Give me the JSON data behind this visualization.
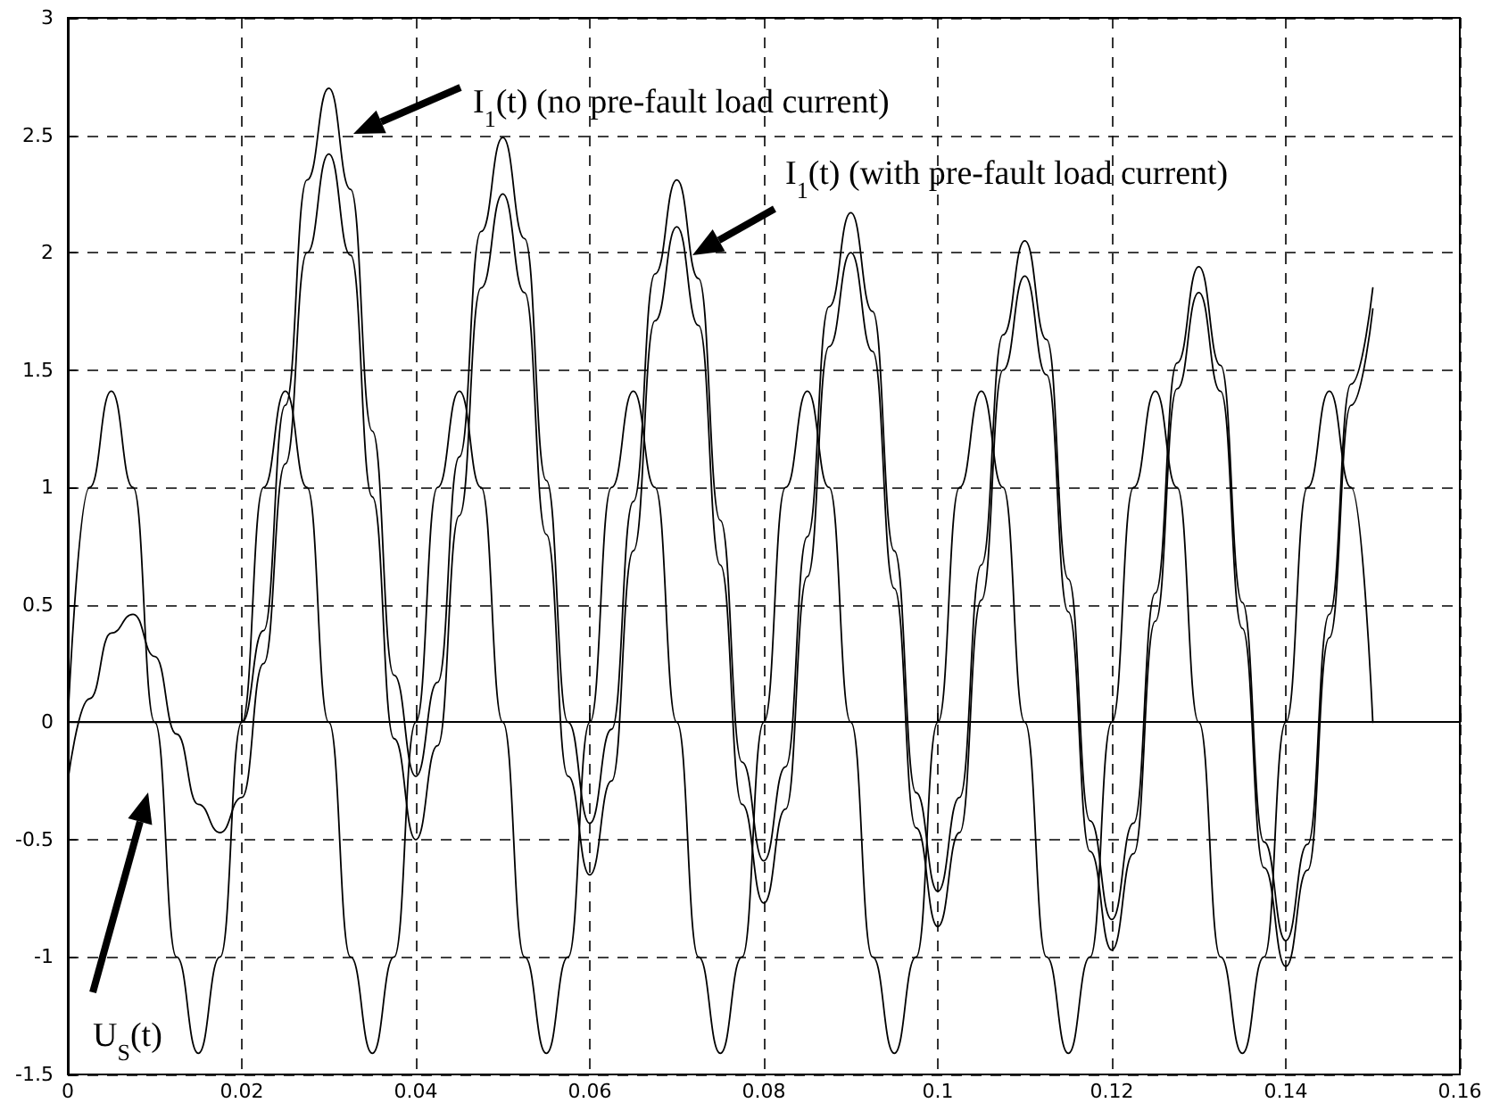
{
  "chart_data": {
    "type": "line",
    "x": [
      0,
      0.0025,
      0.005,
      0.0075,
      0.01,
      0.0125,
      0.015,
      0.0175,
      0.02,
      0.0225,
      0.025,
      0.0275,
      0.03,
      0.0325,
      0.035,
      0.0375,
      0.04,
      0.0425,
      0.045,
      0.0475,
      0.05,
      0.0525,
      0.055,
      0.0575,
      0.06,
      0.0625,
      0.065,
      0.0675,
      0.07,
      0.0725,
      0.075,
      0.0775,
      0.08,
      0.0825,
      0.085,
      0.0875,
      0.09,
      0.0925,
      0.095,
      0.0975,
      0.1,
      0.1025,
      0.105,
      0.1075,
      0.11,
      0.1125,
      0.115,
      0.1175,
      0.12,
      0.1225,
      0.125,
      0.1275,
      0.13,
      0.1325,
      0.135,
      0.1375,
      0.14,
      0.1425,
      0.145,
      0.1475,
      0.15
    ],
    "series": [
      {
        "color": "#000000",
        "values": [
          0,
          1.0,
          1.41,
          1.0,
          0,
          -1.0,
          -1.41,
          -1.0,
          0,
          1.0,
          1.41,
          1.0,
          0,
          -1.0,
          -1.41,
          -1.0,
          0,
          1.0,
          1.41,
          1.0,
          0,
          -1.0,
          -1.41,
          -1.0,
          0,
          1.0,
          1.41,
          1.0,
          0,
          -1.0,
          -1.41,
          -1.0,
          0,
          1.0,
          1.41,
          1.0,
          0,
          -1.0,
          -1.41,
          -1.0,
          0,
          1.0,
          1.41,
          1.0,
          0,
          -1.0,
          -1.41,
          -1.0,
          0,
          1.0,
          1.41,
          1.0,
          0,
          -1.0,
          -1.41,
          -1.0,
          0,
          1.0,
          1.41,
          1.0,
          0
        ]
      },
      {
        "color": "#000000",
        "values": [
          0,
          0,
          0,
          0,
          0,
          0,
          0,
          0,
          0,
          0.39,
          1.35,
          2.31,
          2.7,
          2.27,
          1.24,
          0.2,
          -0.23,
          0.17,
          1.13,
          2.09,
          2.49,
          2.06,
          1.03,
          0,
          -0.43,
          -0.03,
          0.94,
          1.91,
          2.31,
          1.89,
          0.86,
          -0.17,
          -0.59,
          -0.19,
          0.79,
          1.77,
          2.17,
          1.75,
          0.73,
          -0.3,
          -0.72,
          -0.32,
          0.67,
          1.65,
          2.05,
          1.63,
          0.61,
          -0.42,
          -0.84,
          -0.43,
          0.55,
          1.53,
          1.94,
          1.52,
          0.51,
          -0.51,
          -0.93,
          -0.52,
          0.46,
          1.44,
          1.85
        ]
      },
      {
        "color": "#000000",
        "values": [
          -0.25,
          0.1,
          0.38,
          0.46,
          0.28,
          -0.05,
          -0.35,
          -0.47,
          -0.32,
          0.25,
          1.1,
          2.0,
          2.42,
          1.99,
          0.96,
          -0.07,
          -0.5,
          -0.1,
          0.88,
          1.85,
          2.25,
          1.83,
          0.8,
          -0.23,
          -0.65,
          -0.25,
          0.73,
          1.71,
          2.11,
          1.69,
          0.67,
          -0.35,
          -0.77,
          -0.37,
          0.62,
          1.6,
          2.0,
          1.58,
          0.57,
          -0.45,
          -0.87,
          -0.47,
          0.52,
          1.5,
          1.9,
          1.48,
          0.47,
          -0.55,
          -0.97,
          -0.56,
          0.43,
          1.42,
          1.83,
          1.41,
          0.4,
          -0.62,
          -1.04,
          -0.63,
          0.36,
          1.35,
          1.76
        ]
      }
    ],
    "xlim": [
      0,
      0.16
    ],
    "xticks": [
      0,
      0.02,
      0.04,
      0.06,
      0.08,
      0.1,
      0.12,
      0.14,
      0.16
    ],
    "ylim": [
      -1.5,
      3
    ],
    "yticks": [
      -1.5,
      -1,
      -0.5,
      0,
      0.5,
      1,
      1.5,
      2,
      2.5,
      3
    ],
    "grid": true,
    "marker": "none",
    "line_style": "solid",
    "annotations": [
      "I$_{1}$(t) (no pre-fault load current)",
      "I$_{1}$(t) (with pre-fault load current)",
      "U$_{S}$(t)"
    ]
  }
}
